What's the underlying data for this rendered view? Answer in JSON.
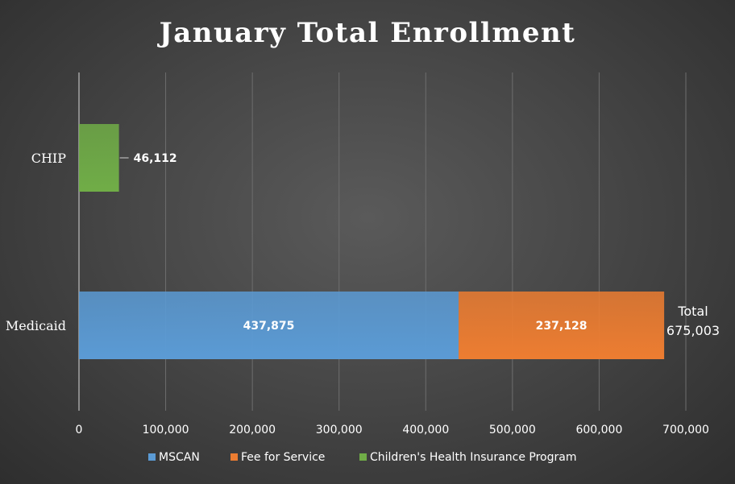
{
  "chart_data": {
    "type": "bar",
    "orientation": "horizontal",
    "stacked": true,
    "title": "January Total Enrollment",
    "categories": [
      "CHIP",
      "Medicaid"
    ],
    "series": [
      {
        "name": "MSCAN",
        "values": [
          0,
          437875
        ],
        "color": "#5b9bd5"
      },
      {
        "name": "Fee for Service",
        "values": [
          0,
          237128
        ],
        "color": "#ed7d31"
      },
      {
        "name": "Children's Health Insurance Program",
        "values": [
          46112,
          0
        ],
        "color": "#70ad47"
      }
    ],
    "data_labels": [
      {
        "category": "CHIP",
        "series": "Children's Health Insurance Program",
        "text": "46,112"
      },
      {
        "category": "Medicaid",
        "series": "MSCAN",
        "text": "437,875"
      },
      {
        "category": "Medicaid",
        "series": "Fee for Service",
        "text": "237,128"
      }
    ],
    "annotations": [
      {
        "category": "Medicaid",
        "lines": [
          "Total",
          "675,003"
        ]
      }
    ],
    "xlim": [
      0,
      700000
    ],
    "x_ticks": [
      0,
      100000,
      200000,
      300000,
      400000,
      500000,
      600000,
      700000
    ],
    "x_tick_labels": [
      "0",
      "100,000",
      "200,000",
      "300,000",
      "400,000",
      "500,000",
      "600,000",
      "700,000"
    ],
    "grid": "vertical",
    "legend_position": "bottom",
    "xlabel": "",
    "ylabel": ""
  }
}
